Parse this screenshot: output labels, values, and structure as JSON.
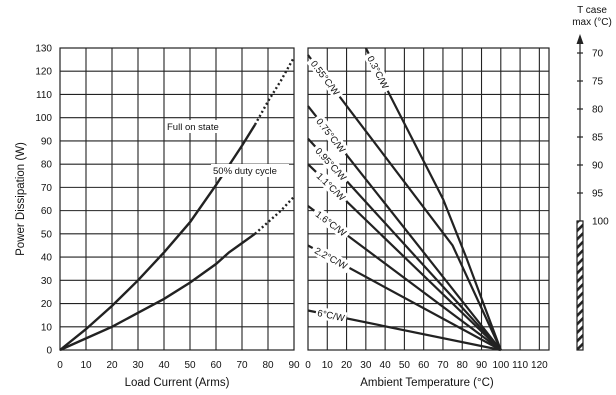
{
  "chart_data": [
    {
      "type": "line",
      "xlabel": "Load Current (Arms)",
      "ylabel": "Power Dissipation (W)",
      "xlim": [
        0,
        90
      ],
      "ylim": [
        0,
        130
      ],
      "xticks": [
        0,
        10,
        20,
        30,
        40,
        50,
        60,
        70,
        80,
        90
      ],
      "yticks": [
        0,
        10,
        20,
        30,
        40,
        50,
        60,
        70,
        80,
        90,
        100,
        110,
        120,
        130
      ],
      "grid": true,
      "series": [
        {
          "name": "Full on state",
          "x": [
            0,
            10,
            20,
            30,
            40,
            50,
            60,
            70,
            75,
            80,
            85,
            90
          ],
          "y": [
            0,
            9,
            19,
            30,
            42,
            55,
            71,
            88,
            97,
            107,
            116,
            126
          ],
          "solid_until_x": 75
        },
        {
          "name": "50% duty cycle",
          "x": [
            0,
            10,
            20,
            30,
            40,
            50,
            60,
            65,
            70,
            75,
            80,
            85,
            90
          ],
          "y": [
            0,
            5,
            10,
            16,
            22,
            29,
            37,
            42,
            46,
            50,
            55,
            60,
            66
          ],
          "solid_until_x": 75
        }
      ]
    },
    {
      "type": "line",
      "xlabel": "Ambient Temperature (°C)",
      "xlim": [
        0,
        125
      ],
      "ylim": [
        0,
        130
      ],
      "xticks": [
        0,
        10,
        20,
        30,
        40,
        50,
        60,
        70,
        80,
        90,
        100,
        110,
        120
      ],
      "grid": true,
      "series": [
        {
          "name": "0.3°C/W",
          "x": [
            30,
            70,
            82,
            100
          ],
          "y": [
            130,
            65,
            40,
            0
          ]
        },
        {
          "name": "0.55°C/W",
          "x": [
            0,
            75,
            100
          ],
          "y": [
            127,
            45,
            0
          ]
        },
        {
          "name": "0.75°C/W",
          "x": [
            0,
            100
          ],
          "y": [
            105,
            0
          ]
        },
        {
          "name": "0.95°C/W",
          "x": [
            0,
            100
          ],
          "y": [
            91,
            0
          ]
        },
        {
          "name": "1.1°C/W",
          "x": [
            0,
            100
          ],
          "y": [
            80,
            0
          ]
        },
        {
          "name": "1.6°C/W",
          "x": [
            0,
            100
          ],
          "y": [
            62,
            0
          ]
        },
        {
          "name": "2.2°C/W",
          "x": [
            0,
            100
          ],
          "y": [
            45,
            0
          ]
        },
        {
          "name": "6°C/W",
          "x": [
            0,
            100
          ],
          "y": [
            17,
            0
          ]
        }
      ]
    },
    {
      "type": "scale",
      "title": "T case max (°C)",
      "ticks": [
        70,
        75,
        80,
        85,
        90,
        95,
        100
      ],
      "hatched_from": 100
    }
  ]
}
